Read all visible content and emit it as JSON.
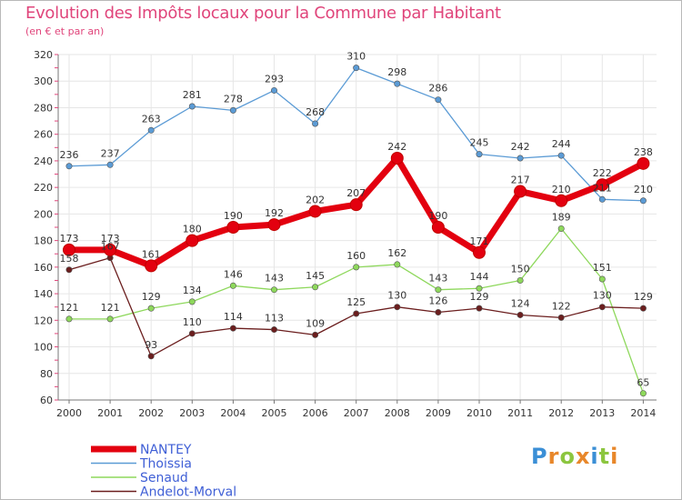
{
  "title": "Evolution des Impôts locaux pour la Commune par Habitant",
  "subtitle": "(en € et par an)",
  "logo": {
    "letters": [
      "P",
      "r",
      "o",
      "x",
      "i",
      "t",
      "i"
    ],
    "colors": [
      "#3b8fd6",
      "#e8872a",
      "#8cc63f",
      "#e8872a",
      "#3b8fd6",
      "#8cc63f",
      "#e8872a"
    ]
  },
  "chart_data": {
    "type": "line",
    "title": "Evolution des Impôts locaux pour la Commune par Habitant",
    "subtitle": "(en € et par an)",
    "x": [
      "2000",
      "2001",
      "2002",
      "2003",
      "2004",
      "2005",
      "2006",
      "2007",
      "2008",
      "2009",
      "2010",
      "2011",
      "2012",
      "2013",
      "2014"
    ],
    "ylim": [
      60,
      320
    ],
    "yticks": [
      60,
      80,
      100,
      120,
      140,
      160,
      180,
      200,
      220,
      240,
      260,
      280,
      300,
      320
    ],
    "grid": true,
    "legend_position": "bottom-left",
    "series": [
      {
        "name": "NANTEY",
        "color": "#e3000f",
        "values": [
          173,
          173,
          161,
          180,
          190,
          192,
          202,
          207,
          242,
          190,
          171,
          217,
          210,
          222,
          238
        ]
      },
      {
        "name": "Thoissia",
        "color": "#5b9bd5",
        "values": [
          236,
          237,
          263,
          281,
          278,
          293,
          268,
          310,
          298,
          286,
          245,
          242,
          244,
          211,
          210
        ]
      },
      {
        "name": "Senaud",
        "color": "#8ed85c",
        "values": [
          121,
          121,
          129,
          134,
          146,
          143,
          145,
          160,
          162,
          143,
          144,
          150,
          189,
          151,
          65
        ]
      },
      {
        "name": "Andelot-Morval",
        "color": "#6b1e1e",
        "values": [
          158,
          167,
          93,
          110,
          114,
          113,
          109,
          125,
          130,
          126,
          129,
          124,
          122,
          130,
          129
        ]
      }
    ]
  }
}
